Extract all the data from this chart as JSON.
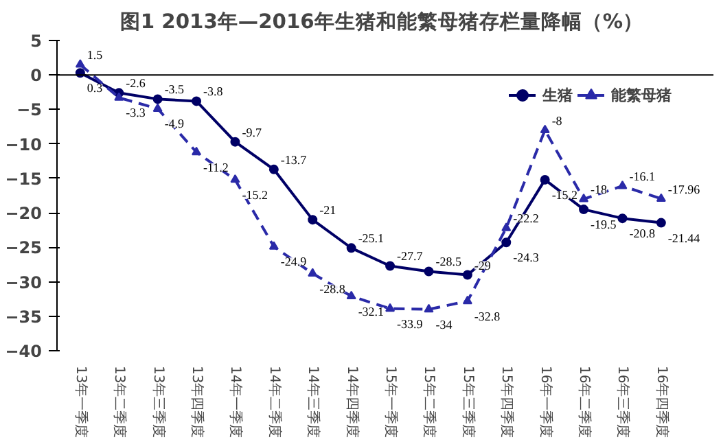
{
  "chart_data": {
    "type": "line",
    "title": "图1  2013年—2016年生猪和能繁母猪存栏量降幅（%）",
    "categories": [
      "13年一季度",
      "13年二季度",
      "13年三季度",
      "13年四季度",
      "14年一季度",
      "14年二季度",
      "14年三季度",
      "14年四季度",
      "15年一季度",
      "15年二季度",
      "15年三季度",
      "15年四季度",
      "16年一季度",
      "16年二季度",
      "16年三季度",
      "16年四季度"
    ],
    "series": [
      {
        "name": "生猪",
        "color": "#000066",
        "marker": "circle",
        "line_style": "solid",
        "values": [
          0.3,
          -2.6,
          -3.5,
          -3.8,
          -9.7,
          -13.7,
          -21,
          -25.1,
          -27.7,
          -28.5,
          -29,
          -24.3,
          -15.2,
          -19.5,
          -20.8,
          -21.44
        ]
      },
      {
        "name": "能繁母猪",
        "color": "#2a2aa8",
        "marker": "triangle",
        "line_style": "dashed",
        "values": [
          1.5,
          -3.3,
          -4.9,
          -11.2,
          -15.2,
          -24.9,
          -28.8,
          -32.1,
          -33.9,
          -34,
          -32.8,
          -22.2,
          -8,
          -18,
          -16.1,
          -17.96
        ]
      }
    ],
    "ylim": [
      -40,
      5
    ],
    "yticks": [
      5,
      0,
      -5,
      -10,
      -15,
      -20,
      -25,
      -30,
      -35,
      -40
    ],
    "ref_lines": [
      {
        "axis": "y",
        "value": 0,
        "color": "#000000"
      }
    ],
    "grid": false,
    "legend": "top right",
    "data_labels": true
  }
}
